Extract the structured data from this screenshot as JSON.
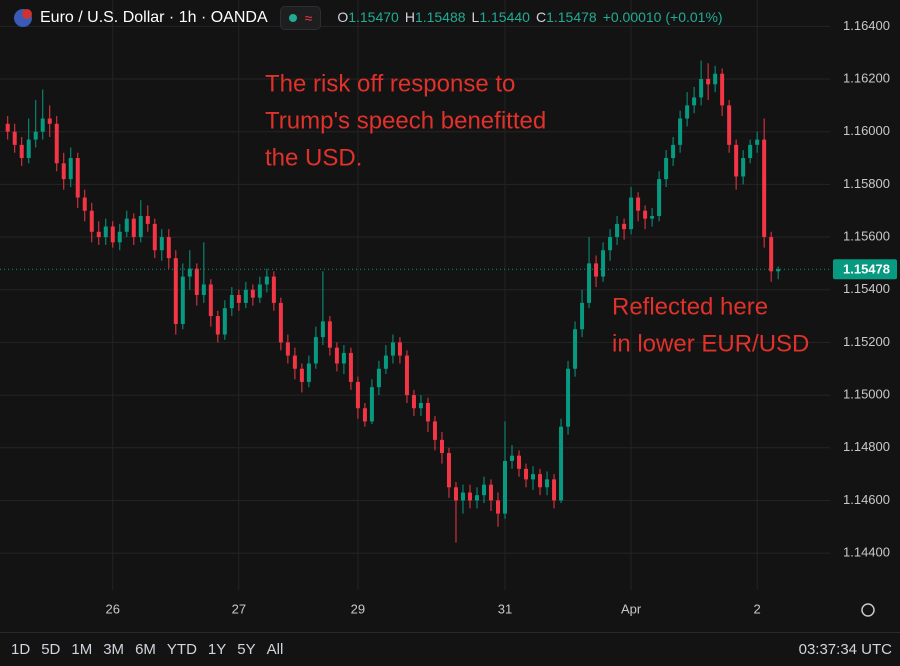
{
  "chart_data": {
    "type": "candlestick",
    "title": "Euro / U.S. Dollar · 1h · OANDA",
    "quote": [
      {
        "label": "O",
        "value": "1.15470"
      },
      {
        "label": "H",
        "value": "1.15488"
      },
      {
        "label": "L",
        "value": "1.15440"
      },
      {
        "label": "C",
        "value": "1.15478"
      }
    ],
    "change": "+0.00010 (+0.01%)",
    "open": [
      1.1603,
      1.16,
      1.1595,
      1.159,
      1.1597,
      1.16,
      1.1605,
      1.1603,
      1.1588,
      1.1582,
      1.159,
      1.1575,
      1.157,
      1.1562,
      1.156,
      1.1564,
      1.1558,
      1.1562,
      1.1567,
      1.156,
      1.1568,
      1.1565,
      1.1555,
      1.156,
      1.1552,
      1.1527,
      1.1545,
      1.1548,
      1.1538,
      1.1542,
      1.153,
      1.1523,
      1.1533,
      1.1538,
      1.1535,
      1.154,
      1.1537,
      1.1542,
      1.1545,
      1.1535,
      1.152,
      1.1515,
      1.151,
      1.1505,
      1.1512,
      1.1522,
      1.1528,
      1.1518,
      1.1512,
      1.1516,
      1.1505,
      1.1495,
      1.149,
      1.1503,
      1.151,
      1.1515,
      1.152,
      1.1515,
      1.15,
      1.1495,
      1.1497,
      1.149,
      1.1483,
      1.1478,
      1.1465,
      1.146,
      1.1463,
      1.146,
      1.1462,
      1.1466,
      1.146,
      1.1455,
      1.1475,
      1.1477,
      1.1472,
      1.1468,
      1.147,
      1.1465,
      1.1468,
      1.146,
      1.1488,
      1.151,
      1.1525,
      1.1535,
      1.155,
      1.1545,
      1.1555,
      1.156,
      1.1565,
      1.1563,
      1.1575,
      1.157,
      1.1567,
      1.1568,
      1.1582,
      1.159,
      1.1595,
      1.1605,
      1.161,
      1.1613,
      1.162,
      1.1618,
      1.1622,
      1.161,
      1.1595,
      1.1583,
      1.159,
      1.1595,
      1.1597,
      1.156,
      1.1547
    ],
    "high": [
      1.1606,
      1.1603,
      1.1598,
      1.1605,
      1.1612,
      1.1616,
      1.161,
      1.1606,
      1.1592,
      1.1594,
      1.1592,
      1.1578,
      1.1573,
      1.1566,
      1.1567,
      1.1566,
      1.1565,
      1.157,
      1.1569,
      1.1574,
      1.1572,
      1.1567,
      1.1563,
      1.1563,
      1.1555,
      1.155,
      1.1555,
      1.155,
      1.1558,
      1.1544,
      1.1532,
      1.1536,
      1.1541,
      1.154,
      1.1543,
      1.1542,
      1.1545,
      1.1548,
      1.1547,
      1.1537,
      1.1523,
      1.1518,
      1.1512,
      1.1515,
      1.1526,
      1.1547,
      1.153,
      1.152,
      1.1519,
      1.1518,
      1.1507,
      1.1497,
      1.1506,
      1.1513,
      1.1519,
      1.1523,
      1.1522,
      1.1517,
      1.1502,
      1.15,
      1.1499,
      1.1492,
      1.1486,
      1.148,
      1.1467,
      1.1466,
      1.1466,
      1.1465,
      1.1469,
      1.1468,
      1.1463,
      1.149,
      1.1481,
      1.1479,
      1.1474,
      1.1473,
      1.1472,
      1.1471,
      1.147,
      1.1491,
      1.1513,
      1.1528,
      1.154,
      1.156,
      1.1553,
      1.1558,
      1.1563,
      1.1568,
      1.1567,
      1.1579,
      1.1577,
      1.1572,
      1.1571,
      1.1585,
      1.1593,
      1.1598,
      1.1608,
      1.1615,
      1.1617,
      1.1627,
      1.1626,
      1.1625,
      1.1624,
      1.1612,
      1.1597,
      1.1593,
      1.1597,
      1.16,
      1.1605,
      1.1562,
      1.15488
    ],
    "low": [
      1.1597,
      1.1592,
      1.1587,
      1.1588,
      1.1594,
      1.1597,
      1.1598,
      1.1585,
      1.1578,
      1.1579,
      1.1571,
      1.1566,
      1.1558,
      1.1557,
      1.1557,
      1.1556,
      1.1555,
      1.156,
      1.1557,
      1.1558,
      1.1562,
      1.1552,
      1.1551,
      1.1548,
      1.1523,
      1.1525,
      1.154,
      1.1534,
      1.1535,
      1.1526,
      1.152,
      1.1521,
      1.153,
      1.1532,
      1.1533,
      1.1534,
      1.1535,
      1.1539,
      1.1532,
      1.1517,
      1.1512,
      1.1506,
      1.1501,
      1.1503,
      1.151,
      1.1519,
      1.1515,
      1.1509,
      1.1508,
      1.1502,
      1.1491,
      1.1488,
      1.1489,
      1.15,
      1.1508,
      1.1512,
      1.1512,
      1.1497,
      1.1492,
      1.1492,
      1.1486,
      1.1479,
      1.1474,
      1.1461,
      1.1444,
      1.1455,
      1.1457,
      1.1457,
      1.1459,
      1.1456,
      1.145,
      1.1453,
      1.1472,
      1.1469,
      1.1465,
      1.1464,
      1.1462,
      1.1462,
      1.1457,
      1.1459,
      1.1485,
      1.1507,
      1.1522,
      1.1533,
      1.1541,
      1.1543,
      1.1551,
      1.1557,
      1.1559,
      1.1561,
      1.1566,
      1.1563,
      1.1564,
      1.1566,
      1.1579,
      1.1587,
      1.1592,
      1.1602,
      1.1607,
      1.161,
      1.1612,
      1.1615,
      1.1606,
      1.1592,
      1.1578,
      1.158,
      1.1588,
      1.1592,
      1.1556,
      1.1543,
      1.1544
    ],
    "close": [
      1.16,
      1.1595,
      1.159,
      1.1597,
      1.16,
      1.1605,
      1.1603,
      1.1588,
      1.1582,
      1.159,
      1.1575,
      1.157,
      1.1562,
      1.156,
      1.1564,
      1.1558,
      1.1562,
      1.1567,
      1.156,
      1.1568,
      1.1565,
      1.1555,
      1.156,
      1.1552,
      1.1527,
      1.1545,
      1.1548,
      1.1538,
      1.1542,
      1.153,
      1.1523,
      1.1533,
      1.1538,
      1.1535,
      1.154,
      1.1537,
      1.1542,
      1.1545,
      1.1535,
      1.152,
      1.1515,
      1.151,
      1.1505,
      1.1512,
      1.1522,
      1.1528,
      1.1518,
      1.1512,
      1.1516,
      1.1505,
      1.1495,
      1.149,
      1.1503,
      1.151,
      1.1515,
      1.152,
      1.1515,
      1.15,
      1.1495,
      1.1497,
      1.149,
      1.1483,
      1.1478,
      1.1465,
      1.146,
      1.1463,
      1.146,
      1.1462,
      1.1466,
      1.146,
      1.1455,
      1.1475,
      1.1477,
      1.1472,
      1.1468,
      1.147,
      1.1465,
      1.1468,
      1.146,
      1.1488,
      1.151,
      1.1525,
      1.1535,
      1.155,
      1.1545,
      1.1555,
      1.156,
      1.1565,
      1.1563,
      1.1575,
      1.157,
      1.1567,
      1.1568,
      1.1582,
      1.159,
      1.1595,
      1.1605,
      1.161,
      1.1613,
      1.162,
      1.1618,
      1.1622,
      1.161,
      1.1595,
      1.1583,
      1.159,
      1.1595,
      1.1597,
      1.156,
      1.1547,
      1.15478
    ],
    "up_color": "#089981",
    "down_color": "#f23645",
    "ylim": [
      1.1426,
      1.165
    ],
    "yticks": [
      {
        "value": 1.144,
        "label": "1.14400"
      },
      {
        "value": 1.146,
        "label": "1.14600"
      },
      {
        "value": 1.148,
        "label": "1.14800"
      },
      {
        "value": 1.15,
        "label": "1.15000"
      },
      {
        "value": 1.152,
        "label": "1.15200"
      },
      {
        "value": 1.154,
        "label": "1.15400"
      },
      {
        "value": 1.156,
        "label": "1.15600"
      },
      {
        "value": 1.158,
        "label": "1.15800"
      },
      {
        "value": 1.16,
        "label": "1.16000"
      },
      {
        "value": 1.162,
        "label": "1.16200"
      },
      {
        "value": 1.164,
        "label": "1.16400"
      }
    ],
    "xlim": [
      -1.1,
      117.4
    ],
    "xticks": [
      {
        "value": 15,
        "label": "26"
      },
      {
        "value": 33,
        "label": "27"
      },
      {
        "value": 50,
        "label": "29"
      },
      {
        "value": 71,
        "label": "31"
      },
      {
        "value": 89,
        "label": "Apr"
      },
      {
        "value": 107,
        "label": "2"
      }
    ],
    "grid": true,
    "annotations": [
      {
        "lines": [
          "The risk off response to",
          "Trump's speech benefitted",
          "the USD."
        ],
        "color": "#e0312b"
      },
      {
        "lines": [
          "Reflected here",
          "in lower EUR/USD"
        ],
        "color": "#e0312b"
      }
    ]
  },
  "toolbar": {
    "ranges": [
      "1D",
      "5D",
      "1M",
      "3M",
      "6M",
      "YTD",
      "1Y",
      "5Y",
      "All"
    ],
    "clock": "03:37:34 UTC"
  }
}
